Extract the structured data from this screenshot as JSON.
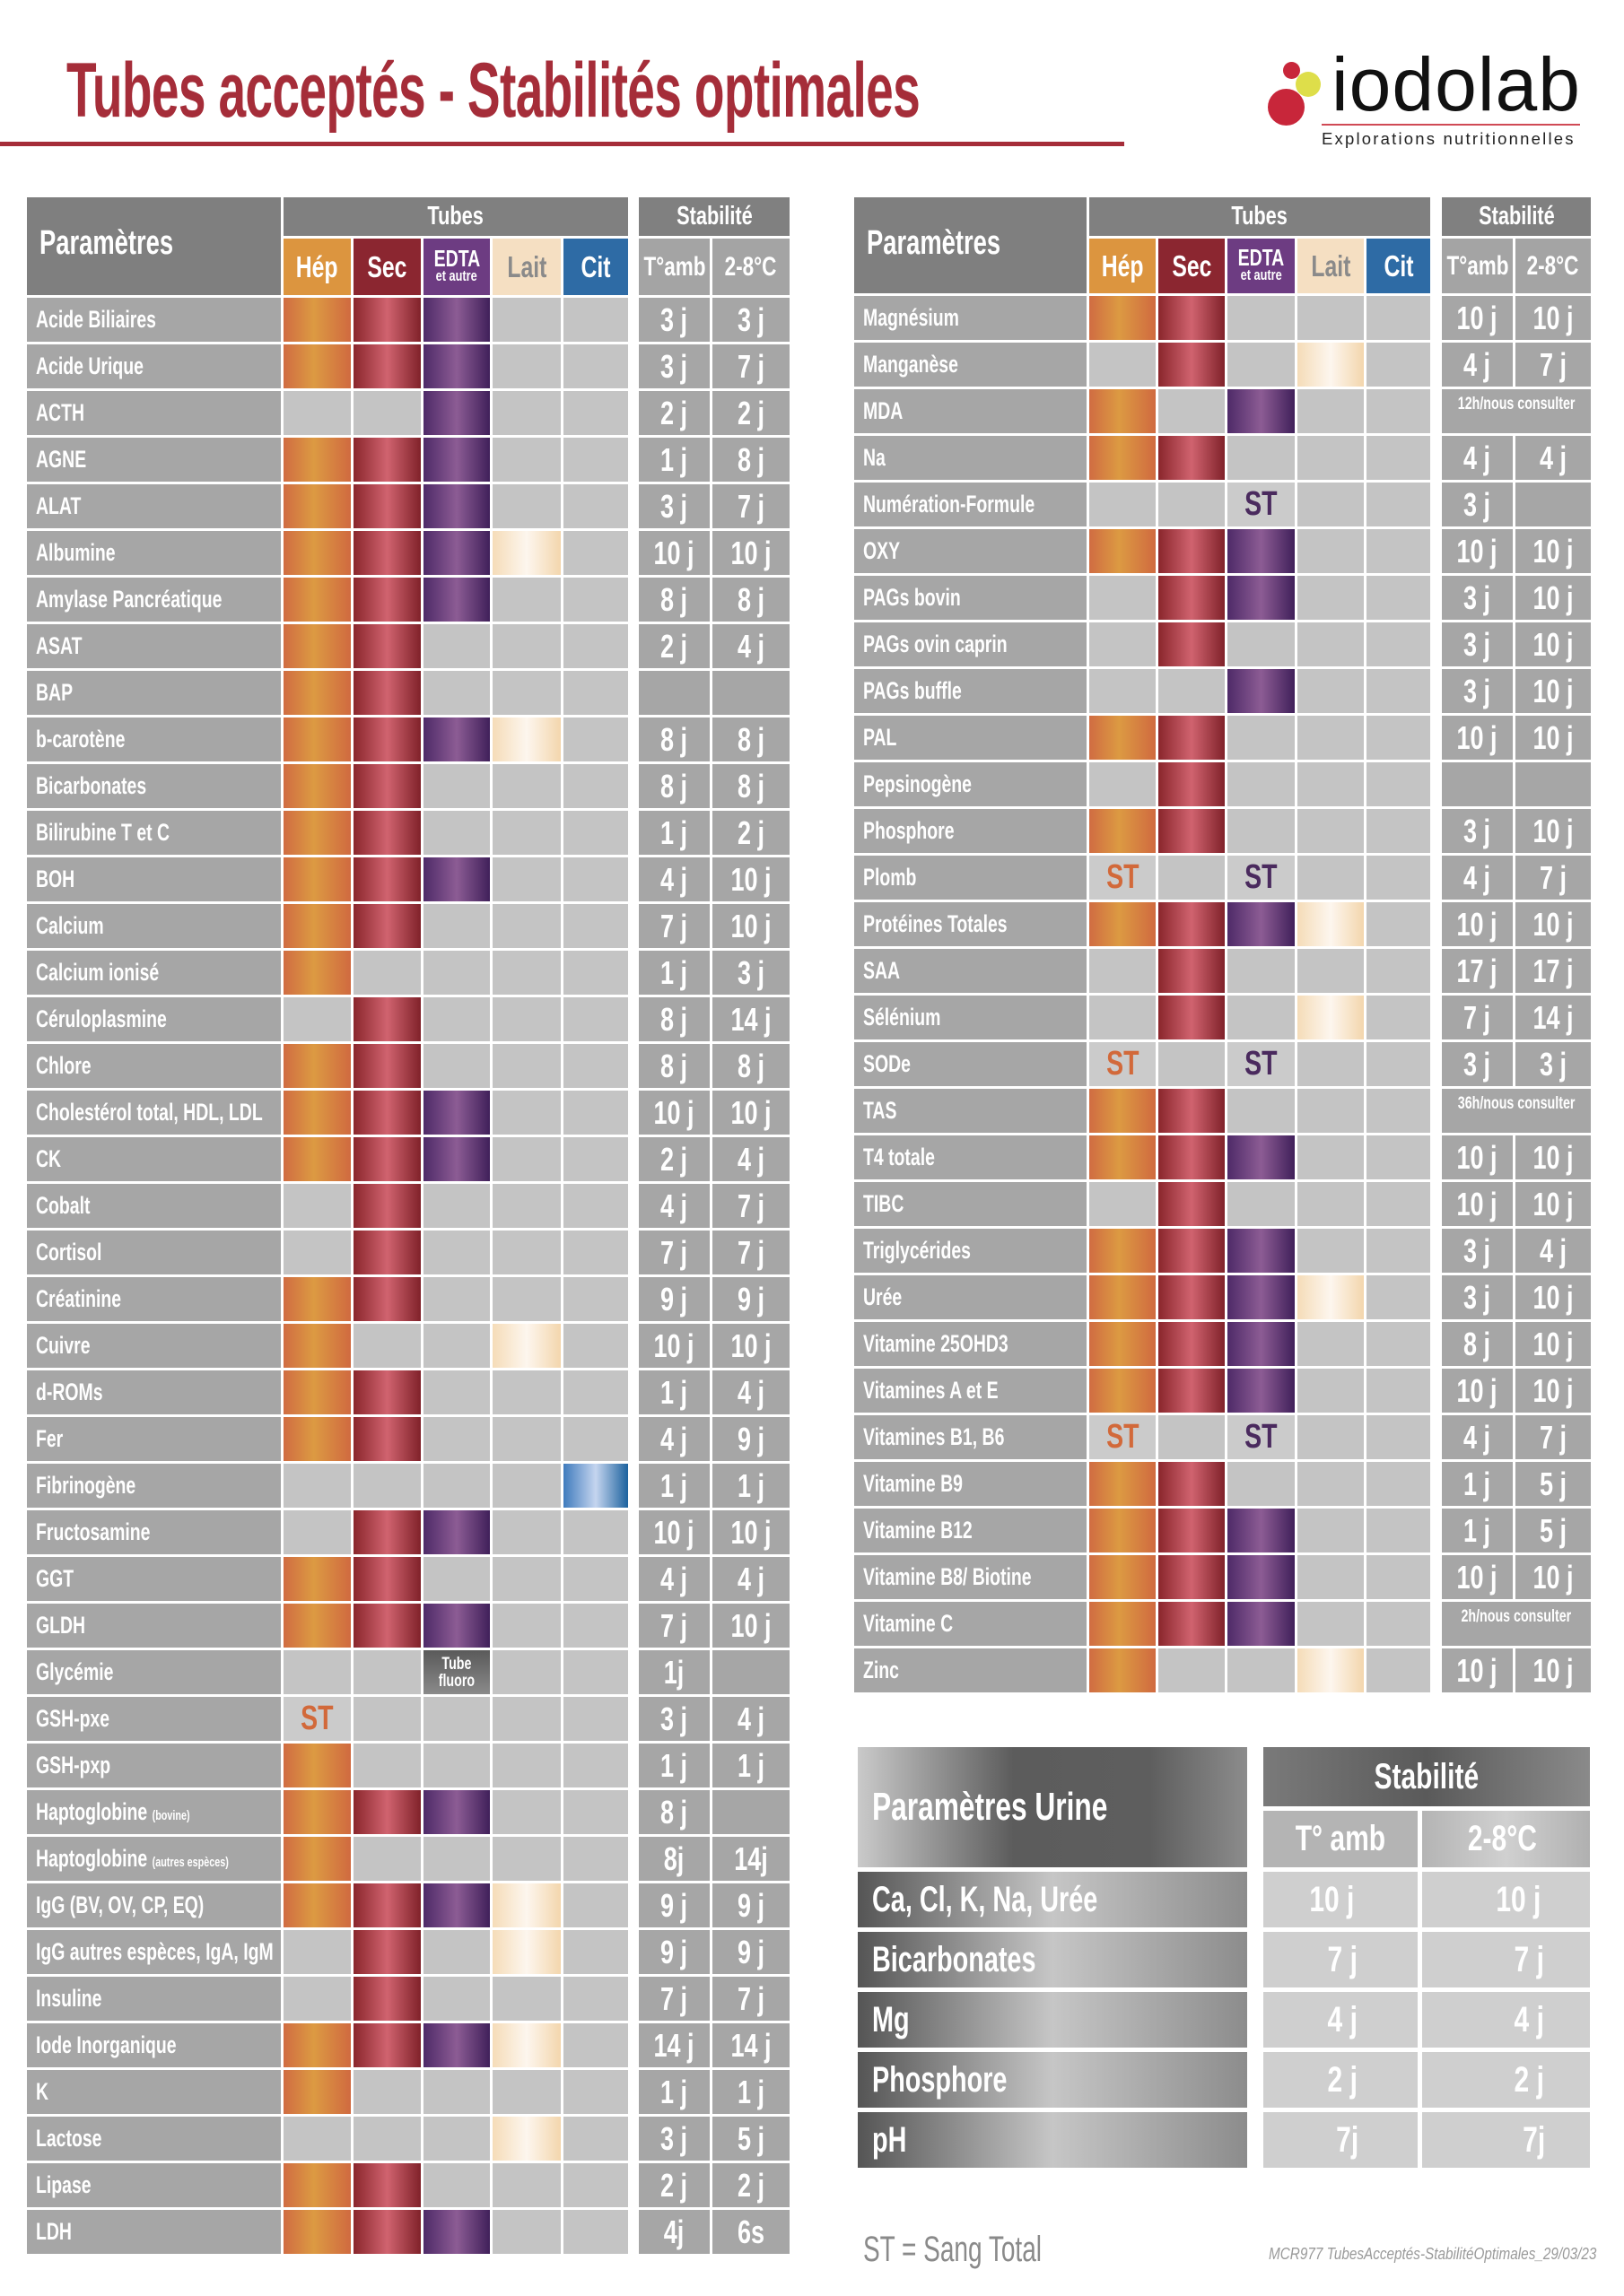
{
  "title": "Tubes acceptés - Stabilités optimales",
  "logo": {
    "name": "iodolab",
    "tagline": "Explorations nutritionnelles",
    "colors": {
      "red": "#c8263a",
      "yellow": "#dede4a"
    }
  },
  "headers": {
    "parametres": "Paramètres",
    "tubes": "Tubes",
    "stabilite": "Stabilité",
    "tube_types": [
      {
        "key": "hep",
        "label": "Hép",
        "sub": "",
        "color": "#dc953f"
      },
      {
        "key": "sec",
        "label": "Sec",
        "sub": "",
        "color": "#8b2630"
      },
      {
        "key": "edta",
        "label": "EDTA",
        "sub": "et autre",
        "color": "#6d3c82"
      },
      {
        "key": "lait",
        "label": "Lait",
        "sub": "",
        "color": "#f5dfc2"
      },
      {
        "key": "cit",
        "label": "Cit",
        "sub": "",
        "color": "#2e6ba5"
      }
    ],
    "tamb": "T°amb",
    "cold": "2-8°C"
  },
  "tube_code_legend": {
    "1": "tube accepted",
    "S": "ST",
    "F": "Tube fluoro",
    "0": "not accepted"
  },
  "st_label": "ST",
  "fluoro_label": [
    "Tube",
    "fluoro"
  ],
  "left_table": [
    {
      "n": "Acide Biliaires",
      "t": "11100",
      "a": "3 j",
      "c": "3 j"
    },
    {
      "n": "Acide Urique",
      "t": "11100",
      "a": "3 j",
      "c": "7 j"
    },
    {
      "n": "ACTH",
      "t": "00100",
      "a": "2 j",
      "c": "2 j"
    },
    {
      "n": "AGNE",
      "t": "11100",
      "a": "1 j",
      "c": "8 j"
    },
    {
      "n": "ALAT",
      "t": "11100",
      "a": "3 j",
      "c": "7 j"
    },
    {
      "n": "Albumine",
      "t": "11110",
      "a": "10 j",
      "c": "10 j"
    },
    {
      "n": "Amylase Pancréatique",
      "t": "11100",
      "a": "8 j",
      "c": "8 j"
    },
    {
      "n": "ASAT",
      "t": "11000",
      "a": "2 j",
      "c": "4 j"
    },
    {
      "n": "BAP",
      "t": "11000",
      "a": "",
      "c": ""
    },
    {
      "n": "b-carotène",
      "t": "11110",
      "a": "8 j",
      "c": "8 j"
    },
    {
      "n": "Bicarbonates",
      "t": "11000",
      "a": "8 j",
      "c": "8 j"
    },
    {
      "n": "Bilirubine T et C",
      "t": "11000",
      "a": "1 j",
      "c": "2 j"
    },
    {
      "n": "BOH",
      "t": "11100",
      "a": "4 j",
      "c": "10 j"
    },
    {
      "n": "Calcium",
      "t": "11000",
      "a": "7 j",
      "c": "10 j"
    },
    {
      "n": "Calcium ionisé",
      "t": "10000",
      "a": "1 j",
      "c": "3 j"
    },
    {
      "n": "Céruloplasmine",
      "t": "01000",
      "a": "8 j",
      "c": "14 j"
    },
    {
      "n": "Chlore",
      "t": "11000",
      "a": "8 j",
      "c": "8 j"
    },
    {
      "n": "Cholestérol total, HDL, LDL",
      "t": "11100",
      "a": "10 j",
      "c": "10 j"
    },
    {
      "n": "CK",
      "t": "11100",
      "a": "2 j",
      "c": "4 j"
    },
    {
      "n": "Cobalt",
      "t": "01000",
      "a": "4 j",
      "c": "7 j"
    },
    {
      "n": "Cortisol",
      "t": "01000",
      "a": "7 j",
      "c": "7 j"
    },
    {
      "n": "Créatinine",
      "t": "11000",
      "a": "9 j",
      "c": "9 j"
    },
    {
      "n": "Cuivre",
      "t": "10010",
      "a": "10 j",
      "c": "10 j"
    },
    {
      "n": "d-ROMs",
      "t": "11000",
      "a": "1 j",
      "c": "4 j"
    },
    {
      "n": "Fer",
      "t": "11000",
      "a": "4 j",
      "c": "9 j"
    },
    {
      "n": "Fibrinogène",
      "t": "00001",
      "a": "1 j",
      "c": "1 j"
    },
    {
      "n": "Fructosamine",
      "t": "01100",
      "a": "10 j",
      "c": "10 j"
    },
    {
      "n": "GGT",
      "t": "11000",
      "a": "4 j",
      "c": "4 j"
    },
    {
      "n": "GLDH",
      "t": "11100",
      "a": "7 j",
      "c": "10 j"
    },
    {
      "n": "Glycémie",
      "t": "00F00",
      "a": "1j",
      "c": ""
    },
    {
      "n": "GSH-pxe",
      "t": "S0000",
      "a": "3 j",
      "c": "4 j"
    },
    {
      "n": "GSH-pxp",
      "t": "10000",
      "a": "1 j",
      "c": "1 j"
    },
    {
      "n": "Haptoglobine",
      "s": "(bovine)",
      "t": "11100",
      "a": "8 j",
      "c": ""
    },
    {
      "n": "Haptoglobine",
      "s": "(autres espèces)",
      "t": "10000",
      "a": "8j",
      "c": "14j"
    },
    {
      "n": "IgG (BV, OV, CP, EQ)",
      "t": "11110",
      "a": "9 j",
      "c": "9 j"
    },
    {
      "n": "IgG autres espèces, IgA, IgM",
      "t": "01010",
      "a": "9 j",
      "c": "9 j"
    },
    {
      "n": "Insuline",
      "t": "01000",
      "a": "7 j",
      "c": "7 j"
    },
    {
      "n": "Iode Inorganique",
      "t": "11110",
      "a": "14 j",
      "c": "14 j"
    },
    {
      "n": "K",
      "t": "10000",
      "a": "1 j",
      "c": "1 j"
    },
    {
      "n": "Lactose",
      "t": "00010",
      "a": "3 j",
      "c": "5 j"
    },
    {
      "n": "Lipase",
      "t": "11000",
      "a": "2 j",
      "c": "2 j"
    },
    {
      "n": "LDH",
      "t": "11100",
      "a": "4j",
      "c": "6s"
    }
  ],
  "right_table": [
    {
      "n": "Magnésium",
      "t": "11000",
      "a": "10 j",
      "c": "10 j"
    },
    {
      "n": "Manganèse",
      "t": "01010",
      "a": "4 j",
      "c": "7 j"
    },
    {
      "n": "MDA",
      "t": "10100",
      "m": "12h/nous consulter"
    },
    {
      "n": "Na",
      "t": "11000",
      "a": "4 j",
      "c": "4 j"
    },
    {
      "n": "Numération-Formule",
      "t": "00S00",
      "a": "3 j",
      "c": ""
    },
    {
      "n": "OXY",
      "t": "11100",
      "a": "10 j",
      "c": "10 j"
    },
    {
      "n": "PAGs bovin",
      "t": "01100",
      "a": "3 j",
      "c": "10 j"
    },
    {
      "n": "PAGs ovin caprin",
      "t": "01000",
      "a": "3 j",
      "c": "10 j"
    },
    {
      "n": "PAGs buffle",
      "t": "00100",
      "a": "3 j",
      "c": "10 j"
    },
    {
      "n": "PAL",
      "t": "11000",
      "a": "10 j",
      "c": "10 j"
    },
    {
      "n": "Pepsinogène",
      "t": "01000",
      "a": "",
      "c": ""
    },
    {
      "n": "Phosphore",
      "t": "11000",
      "a": "3 j",
      "c": "10 j"
    },
    {
      "n": "Plomb",
      "t": "S0S00",
      "a": "4 j",
      "c": "7 j"
    },
    {
      "n": "Protéines Totales",
      "t": "11110",
      "a": "10 j",
      "c": "10 j"
    },
    {
      "n": "SAA",
      "t": "01000",
      "a": "17 j",
      "c": "17 j"
    },
    {
      "n": "Sélénium",
      "t": "01010",
      "a": "7 j",
      "c": "14 j"
    },
    {
      "n": "SODe",
      "t": "S0S00",
      "a": "3 j",
      "c": "3 j"
    },
    {
      "n": "TAS",
      "t": "11000",
      "m": "36h/nous consulter"
    },
    {
      "n": "T4 totale",
      "t": "11100",
      "a": "10 j",
      "c": "10 j"
    },
    {
      "n": "TIBC",
      "t": "01000",
      "a": "10 j",
      "c": "10 j"
    },
    {
      "n": "Triglycérides",
      "t": "11100",
      "a": "3 j",
      "c": "4 j"
    },
    {
      "n": "Urée",
      "t": "11110",
      "a": "3 j",
      "c": "10 j"
    },
    {
      "n": "Vitamine 25OHD3",
      "t": "11100",
      "a": "8 j",
      "c": "10 j"
    },
    {
      "n": "Vitamines A et E",
      "t": "11100",
      "a": "10 j",
      "c": "10 j"
    },
    {
      "n": "Vitamines B1, B6",
      "t": "S0S00",
      "a": "4 j",
      "c": "7 j"
    },
    {
      "n": "Vitamine B9",
      "t": "11000",
      "a": "1 j",
      "c": "5 j"
    },
    {
      "n": "Vitamine B12",
      "t": "11100",
      "a": "1 j",
      "c": "5 j"
    },
    {
      "n": "Vitamine B8/ Biotine",
      "t": "11100",
      "a": "10 j",
      "c": "10 j"
    },
    {
      "n": "Vitamine C",
      "t": "11100",
      "m": "2h/nous consulter"
    },
    {
      "n": "Zinc",
      "t": "10010",
      "a": "10 j",
      "c": "10 j"
    }
  ],
  "urine": {
    "title": "Paramètres Urine",
    "stabilite": "Stabilité",
    "tamb": "T° amb",
    "cold": "2-8°C",
    "rows": [
      {
        "n": "Ca, Cl, K, Na, Urée",
        "a": "10 j",
        "c": "10 j"
      },
      {
        "n": "Bicarbonates",
        "a": "7 j",
        "c": "7 j"
      },
      {
        "n": "Mg",
        "a": "4 j",
        "c": "4 j"
      },
      {
        "n": "Phosphore",
        "a": "2 j",
        "c": "2 j"
      },
      {
        "n": "pH",
        "a": "7j",
        "c": "7j"
      }
    ]
  },
  "legend": "ST = Sang Total",
  "reference": "MCR977 TubesAcceptés-StabilitéOptimales_29/03/23"
}
